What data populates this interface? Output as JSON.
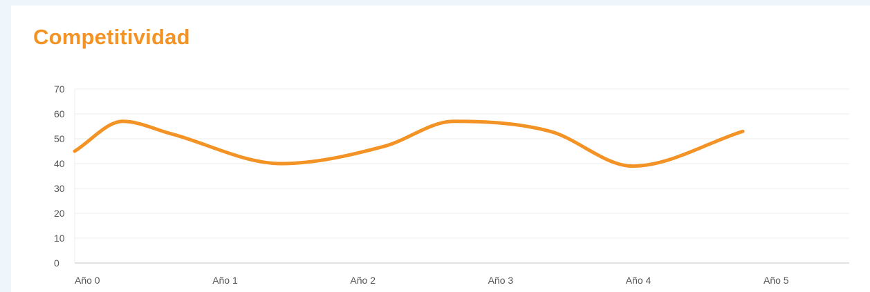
{
  "chart_data": {
    "type": "line",
    "title": "Competitividad",
    "xlabel": "",
    "ylabel": "",
    "categories": [
      "Año 0",
      "Año 1",
      "Año 2",
      "Año 3",
      "Año 4",
      "Año 5"
    ],
    "y_ticks": [
      "0",
      "10",
      "20",
      "30",
      "40",
      "50",
      "60",
      "70"
    ],
    "ylim": [
      0,
      70
    ],
    "grid": true,
    "smooth": true,
    "series": [
      {
        "name": "",
        "color": "#f39325",
        "x": [
          0,
          0.35,
          0.7,
          1.5,
          2.25,
          2.75,
          3.45,
          4.05,
          4.85
        ],
        "y": [
          45,
          57,
          52,
          40,
          47,
          57,
          53,
          39,
          53
        ]
      }
    ]
  }
}
